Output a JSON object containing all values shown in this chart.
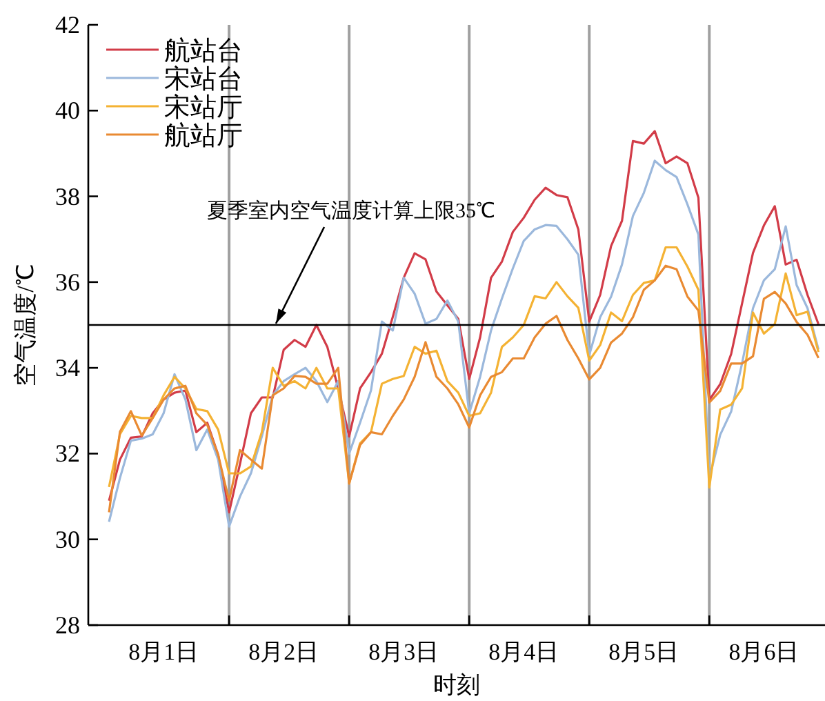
{
  "chart_data": {
    "type": "line",
    "xlabel": "时刻",
    "ylabel": "空气温度/℃",
    "legend": "top left",
    "categories": [
      null,
      null,
      null,
      null,
      null,
      "8月1日",
      null,
      null,
      null,
      null,
      null,
      null,
      null,
      null,
      null,
      null,
      "8月2日",
      null,
      null,
      null,
      null,
      null,
      null,
      null,
      null,
      null,
      null,
      "8月3日",
      null,
      null,
      null,
      null,
      null,
      null,
      null,
      null,
      null,
      null,
      "8月4日",
      null,
      null,
      null,
      null,
      null,
      null,
      null,
      null,
      null,
      null,
      "8月5日",
      null,
      null,
      null,
      null,
      null,
      null,
      null,
      null,
      null,
      null,
      "8月6日",
      null,
      null,
      null,
      null,
      null
    ],
    "ylim": [
      28,
      42
    ],
    "yticks": [
      28,
      30,
      32,
      34,
      36,
      38,
      40,
      42
    ],
    "series": [
      {
        "name": "航站台",
        "color": "#d23c48",
        "values": [
          30.9,
          31.86,
          32.37,
          32.4,
          32.94,
          33.26,
          33.42,
          33.47,
          32.5,
          32.72,
          31.97,
          30.63,
          31.76,
          32.94,
          33.31,
          33.31,
          34.42,
          34.65,
          34.49,
          35.0,
          34.49,
          33.52,
          32.4,
          33.52,
          33.9,
          34.33,
          35.19,
          36.1,
          36.67,
          36.53,
          35.78,
          35.46,
          35.14,
          33.74,
          34.71,
          36.1,
          36.48,
          37.17,
          37.5,
          37.92,
          38.2,
          38.03,
          37.98,
          37.23,
          35.08,
          35.7,
          36.84,
          37.43,
          39.29,
          39.23,
          39.52,
          38.77,
          38.93,
          38.77,
          37.97,
          33.25,
          33.62,
          34.32,
          35.5,
          36.68,
          37.32,
          37.77,
          36.41,
          36.52,
          35.7,
          35.02
        ]
      },
      {
        "name": "宋站台",
        "color": "#9bb8dc",
        "values": [
          30.41,
          31.43,
          32.3,
          32.35,
          32.45,
          32.94,
          33.85,
          33.26,
          32.08,
          32.56,
          31.86,
          30.3,
          31.0,
          31.54,
          32.4,
          33.36,
          33.69,
          33.85,
          34.0,
          33.69,
          33.2,
          33.69,
          32.0,
          32.72,
          33.47,
          35.08,
          34.87,
          36.1,
          35.73,
          35.03,
          35.14,
          35.57,
          35.08,
          32.94,
          33.79,
          34.87,
          35.62,
          36.32,
          36.96,
          37.23,
          37.33,
          37.31,
          37.0,
          36.64,
          34.3,
          35.18,
          35.66,
          36.41,
          37.54,
          38.08,
          38.83,
          38.61,
          38.45,
          37.81,
          37.11,
          31.42,
          32.44,
          32.98,
          34.1,
          35.39,
          36.04,
          36.3,
          37.3,
          35.93,
          35.39,
          34.43
        ]
      },
      {
        "name": "宋站厅",
        "color": "#f4b233",
        "values": [
          31.22,
          32.45,
          32.88,
          32.83,
          32.83,
          33.36,
          33.79,
          33.52,
          33.04,
          32.99,
          32.56,
          31.54,
          31.54,
          31.7,
          32.5,
          34.0,
          33.58,
          33.69,
          33.52,
          34.0,
          33.52,
          33.52,
          31.3,
          32.24,
          32.5,
          33.63,
          33.74,
          33.81,
          34.49,
          34.33,
          34.4,
          33.69,
          33.42,
          32.88,
          32.94,
          33.42,
          34.49,
          34.71,
          35.0,
          35.67,
          35.62,
          36.0,
          35.67,
          35.4,
          34.17,
          34.53,
          35.29,
          35.09,
          35.7,
          35.98,
          36.04,
          36.81,
          36.81,
          36.36,
          35.82,
          31.21,
          33.03,
          33.14,
          33.52,
          35.29,
          34.8,
          35.02,
          36.2,
          35.23,
          35.31,
          34.37
        ]
      },
      {
        "name": "航站厅",
        "color": "#e98a32",
        "values": [
          30.63,
          32.51,
          32.99,
          32.42,
          32.83,
          33.26,
          33.52,
          33.58,
          32.94,
          32.67,
          31.97,
          30.9,
          32.08,
          31.86,
          31.65,
          33.36,
          33.52,
          33.81,
          33.79,
          33.63,
          33.63,
          34.0,
          31.3,
          32.2,
          32.5,
          32.45,
          32.88,
          33.26,
          33.79,
          34.6,
          33.79,
          33.52,
          33.15,
          32.61,
          33.36,
          33.79,
          33.9,
          34.22,
          34.22,
          34.71,
          35.03,
          35.21,
          34.65,
          34.22,
          33.73,
          34.0,
          34.59,
          34.8,
          35.18,
          35.82,
          36.04,
          36.38,
          36.3,
          35.66,
          35.34,
          33.19,
          33.46,
          34.1,
          34.1,
          34.27,
          35.61,
          35.77,
          35.5,
          35.07,
          34.77,
          34.23
        ]
      }
    ],
    "ref_lines": [
      {
        "axis": "y",
        "value": 35,
        "label": "夏季室内空气温度计算上限35℃",
        "color": "#000000"
      }
    ]
  }
}
